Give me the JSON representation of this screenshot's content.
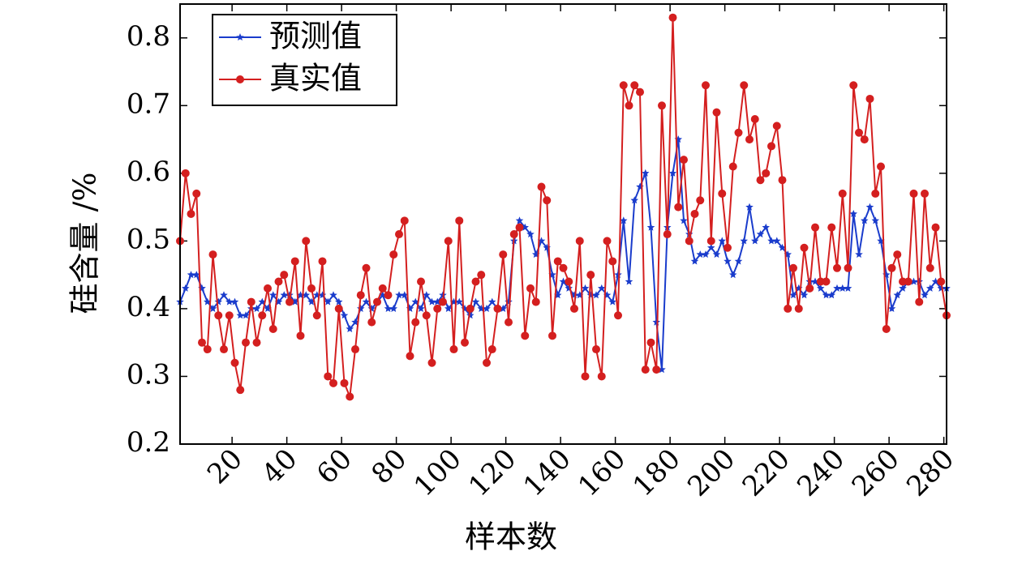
{
  "chart_data": {
    "type": "line",
    "xlabel": "样本数",
    "ylabel": "硅含量 /%",
    "xlim": [
      1,
      281
    ],
    "xticks": [
      20,
      40,
      60,
      80,
      100,
      120,
      140,
      160,
      180,
      200,
      220,
      240,
      260,
      280
    ],
    "ylim": [
      0.2,
      0.85
    ],
    "yticks": [
      0.2,
      0.3,
      0.4,
      0.5,
      0.6,
      0.7,
      0.8
    ],
    "legend": "upper left",
    "x": [
      1,
      3,
      5,
      7,
      9,
      11,
      13,
      15,
      17,
      19,
      21,
      23,
      25,
      27,
      29,
      31,
      33,
      35,
      37,
      39,
      41,
      43,
      45,
      47,
      49,
      51,
      53,
      55,
      57,
      59,
      61,
      63,
      65,
      67,
      69,
      71,
      73,
      75,
      77,
      79,
      81,
      83,
      85,
      87,
      89,
      91,
      93,
      95,
      97,
      99,
      101,
      103,
      105,
      107,
      109,
      111,
      113,
      115,
      117,
      119,
      121,
      123,
      125,
      127,
      129,
      131,
      133,
      135,
      137,
      139,
      141,
      143,
      145,
      147,
      149,
      151,
      153,
      155,
      157,
      159,
      161,
      163,
      165,
      167,
      169,
      171,
      173,
      175,
      177,
      179,
      181,
      183,
      185,
      187,
      189,
      191,
      193,
      195,
      197,
      199,
      201,
      203,
      205,
      207,
      209,
      211,
      213,
      215,
      217,
      219,
      221,
      223,
      225,
      227,
      229,
      231,
      233,
      235,
      237,
      239,
      241,
      243,
      245,
      247,
      249,
      251,
      253,
      255,
      257,
      259,
      261,
      263,
      265,
      267,
      269,
      271,
      273,
      275,
      277,
      279,
      281
    ],
    "series": [
      {
        "name": "预测值",
        "color": "#1a3ccc",
        "marker": "star",
        "values": [
          0.41,
          0.43,
          0.45,
          0.45,
          0.43,
          0.41,
          0.4,
          0.41,
          0.42,
          0.41,
          0.41,
          0.39,
          0.39,
          0.4,
          0.4,
          0.41,
          0.4,
          0.42,
          0.41,
          0.42,
          0.42,
          0.41,
          0.42,
          0.42,
          0.41,
          0.42,
          0.42,
          0.41,
          0.42,
          0.41,
          0.39,
          0.37,
          0.38,
          0.4,
          0.41,
          0.4,
          0.41,
          0.42,
          0.4,
          0.4,
          0.42,
          0.42,
          0.4,
          0.41,
          0.4,
          0.42,
          0.41,
          0.41,
          0.42,
          0.4,
          0.41,
          0.41,
          0.4,
          0.39,
          0.41,
          0.4,
          0.4,
          0.41,
          0.4,
          0.4,
          0.41,
          0.5,
          0.53,
          0.52,
          0.51,
          0.48,
          0.5,
          0.49,
          0.45,
          0.42,
          0.44,
          0.43,
          0.42,
          0.42,
          0.43,
          0.42,
          0.42,
          0.43,
          0.42,
          0.41,
          0.45,
          0.53,
          0.44,
          0.56,
          0.58,
          0.6,
          0.52,
          0.38,
          0.31,
          0.52,
          0.6,
          0.65,
          0.53,
          0.51,
          0.47,
          0.48,
          0.48,
          0.49,
          0.48,
          0.5,
          0.47,
          0.45,
          0.47,
          0.5,
          0.55,
          0.5,
          0.51,
          0.52,
          0.5,
          0.5,
          0.49,
          0.48,
          0.42,
          0.43,
          0.42,
          0.44,
          0.44,
          0.43,
          0.42,
          0.42,
          0.43,
          0.43,
          0.43,
          0.54,
          0.48,
          0.53,
          0.55,
          0.53,
          0.5,
          0.45,
          0.4,
          0.42,
          0.43,
          0.44,
          0.44,
          0.44,
          0.42,
          0.43,
          0.44,
          0.43,
          0.43
        ]
      },
      {
        "name": "真实值",
        "color": "#d41f1f",
        "marker": "circle",
        "values": [
          0.5,
          0.6,
          0.54,
          0.57,
          0.35,
          0.34,
          0.48,
          0.39,
          0.34,
          0.39,
          0.32,
          0.28,
          0.35,
          0.41,
          0.35,
          0.39,
          0.43,
          0.37,
          0.44,
          0.45,
          0.41,
          0.47,
          0.36,
          0.5,
          0.43,
          0.39,
          0.47,
          0.3,
          0.29,
          0.4,
          0.29,
          0.27,
          0.34,
          0.42,
          0.46,
          0.38,
          0.41,
          0.43,
          0.42,
          0.48,
          0.51,
          0.53,
          0.33,
          0.38,
          0.44,
          0.39,
          0.32,
          0.4,
          0.41,
          0.5,
          0.34,
          0.53,
          0.35,
          0.4,
          0.44,
          0.45,
          0.32,
          0.34,
          0.4,
          0.48,
          0.38,
          0.51,
          0.52,
          0.36,
          0.43,
          0.41,
          0.58,
          0.56,
          0.36,
          0.47,
          0.46,
          0.44,
          0.4,
          0.5,
          0.3,
          0.45,
          0.34,
          0.3,
          0.5,
          0.47,
          0.39,
          0.73,
          0.7,
          0.73,
          0.72,
          0.31,
          0.35,
          0.31,
          0.7,
          0.51,
          0.83,
          0.55,
          0.62,
          0.5,
          0.54,
          0.56,
          0.73,
          0.5,
          0.69,
          0.57,
          0.49,
          0.61,
          0.66,
          0.73,
          0.65,
          0.68,
          0.59,
          0.6,
          0.64,
          0.67,
          0.59,
          0.4,
          0.46,
          0.4,
          0.49,
          0.43,
          0.52,
          0.44,
          0.44,
          0.52,
          0.46,
          0.57,
          0.46,
          0.73,
          0.66,
          0.65,
          0.71,
          0.57,
          0.61,
          0.37,
          0.46,
          0.48,
          0.44,
          0.44,
          0.57,
          0.41,
          0.57,
          0.46,
          0.52,
          0.44,
          0.39
        ]
      }
    ]
  }
}
